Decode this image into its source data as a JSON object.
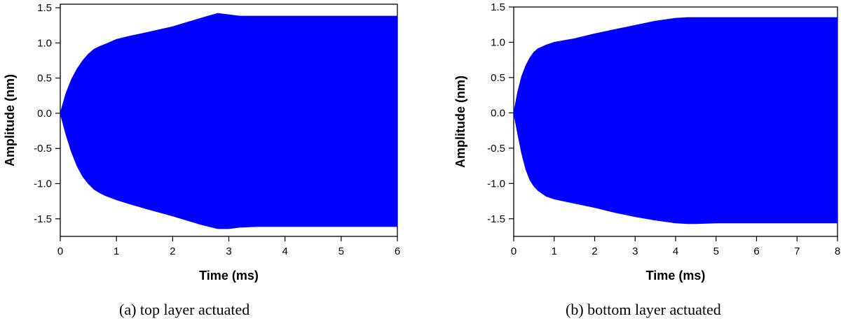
{
  "chart_data": [
    {
      "type": "area",
      "caption": "(a) top layer actuated",
      "xlabel": "Time (ms)",
      "ylabel": "Amplitude (nm)",
      "xlim": [
        0,
        6
      ],
      "ylim": [
        -1.75,
        1.55
      ],
      "x_ticks": [
        0,
        1,
        2,
        3,
        4,
        5,
        6
      ],
      "y_ticks": [
        -1.5,
        -1.0,
        -0.5,
        0.0,
        0.5,
        1.0,
        1.5
      ],
      "x_tick_labels": [
        "0",
        "1",
        "2",
        "3",
        "4",
        "5",
        "6"
      ],
      "y_tick_labels": [
        "-1.5",
        "-1.0",
        "-0.5",
        "0.0",
        "0.5",
        "1.0",
        "1.5"
      ],
      "fill_color": "#0000ff",
      "series": [
        {
          "time": [
            0,
            0.1,
            0.2,
            0.3,
            0.4,
            0.5,
            0.6,
            0.7,
            0.8,
            1.0,
            1.2,
            1.5,
            2.0,
            2.5,
            2.8,
            3.0,
            3.2,
            3.5,
            4.0,
            5.0,
            6.0
          ],
          "upper": [
            0.0,
            0.28,
            0.48,
            0.63,
            0.75,
            0.84,
            0.91,
            0.95,
            0.98,
            1.05,
            1.09,
            1.14,
            1.23,
            1.35,
            1.42,
            1.4,
            1.38,
            1.38,
            1.38,
            1.38,
            1.38
          ],
          "lower": [
            0.0,
            -0.3,
            -0.55,
            -0.75,
            -0.9,
            -1.0,
            -1.08,
            -1.13,
            -1.17,
            -1.23,
            -1.28,
            -1.35,
            -1.46,
            -1.58,
            -1.64,
            -1.64,
            -1.62,
            -1.61,
            -1.61,
            -1.61,
            -1.61
          ]
        }
      ]
    },
    {
      "type": "area",
      "caption": "(b) bottom layer actuated",
      "xlabel": "Time (ms)",
      "ylabel": "Amplitude (nm)",
      "xlim": [
        0,
        8
      ],
      "ylim": [
        -1.75,
        1.5
      ],
      "x_ticks": [
        0,
        1,
        2,
        3,
        4,
        5,
        6,
        7,
        8
      ],
      "y_ticks": [
        -1.5,
        -1.0,
        -0.5,
        0.0,
        0.5,
        1.0,
        1.5
      ],
      "x_tick_labels": [
        "0",
        "1",
        "2",
        "3",
        "4",
        "5",
        "6",
        "7",
        "8"
      ],
      "y_tick_labels": [
        "-1.5",
        "-1.0",
        "-0.5",
        "0.0",
        "0.5",
        "1.0",
        "1.5"
      ],
      "fill_color": "#0000ff",
      "series": [
        {
          "time": [
            0,
            0.1,
            0.2,
            0.3,
            0.4,
            0.5,
            0.6,
            0.8,
            1.0,
            1.5,
            2.0,
            2.5,
            3.0,
            3.5,
            4.0,
            4.3,
            4.5,
            5.0,
            6.0,
            7.0,
            8.0
          ],
          "upper": [
            0.0,
            0.3,
            0.52,
            0.67,
            0.78,
            0.86,
            0.91,
            0.96,
            1.0,
            1.05,
            1.12,
            1.18,
            1.24,
            1.3,
            1.34,
            1.35,
            1.35,
            1.35,
            1.35,
            1.35,
            1.35
          ],
          "lower": [
            0.0,
            -0.3,
            -0.58,
            -0.8,
            -0.95,
            -1.04,
            -1.1,
            -1.18,
            -1.22,
            -1.28,
            -1.34,
            -1.41,
            -1.47,
            -1.52,
            -1.56,
            -1.57,
            -1.57,
            -1.56,
            -1.56,
            -1.56,
            -1.56
          ]
        }
      ]
    }
  ]
}
